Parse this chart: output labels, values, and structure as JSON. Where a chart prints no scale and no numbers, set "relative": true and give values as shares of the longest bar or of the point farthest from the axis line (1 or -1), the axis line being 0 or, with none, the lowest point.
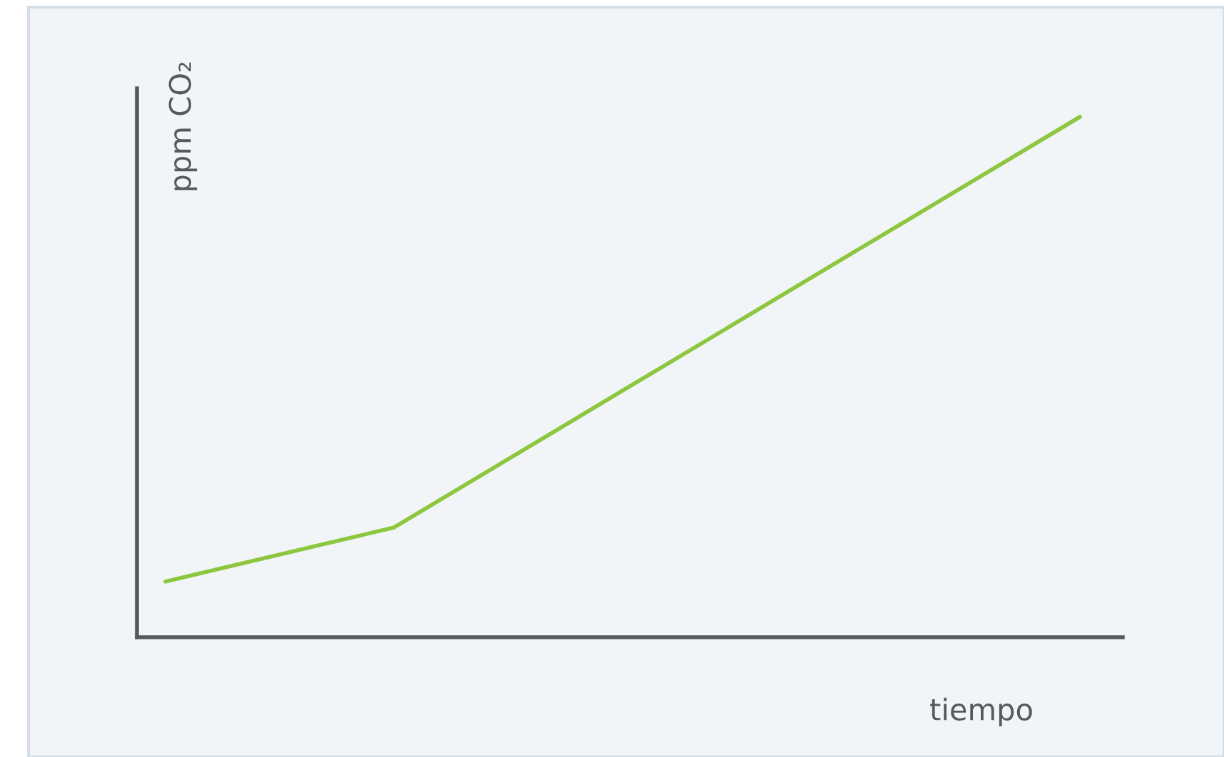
{
  "chart_data": {
    "type": "line",
    "relative": true,
    "xlabel": "tiempo",
    "ylabel": "ppm CO₂",
    "categories": [
      null,
      null,
      null,
      null,
      null
    ],
    "series": [
      {
        "color": "#8dc63f",
        "values": [
          0.107,
          0.211,
          0.474,
          0.737,
          1
        ]
      }
    ]
  }
}
